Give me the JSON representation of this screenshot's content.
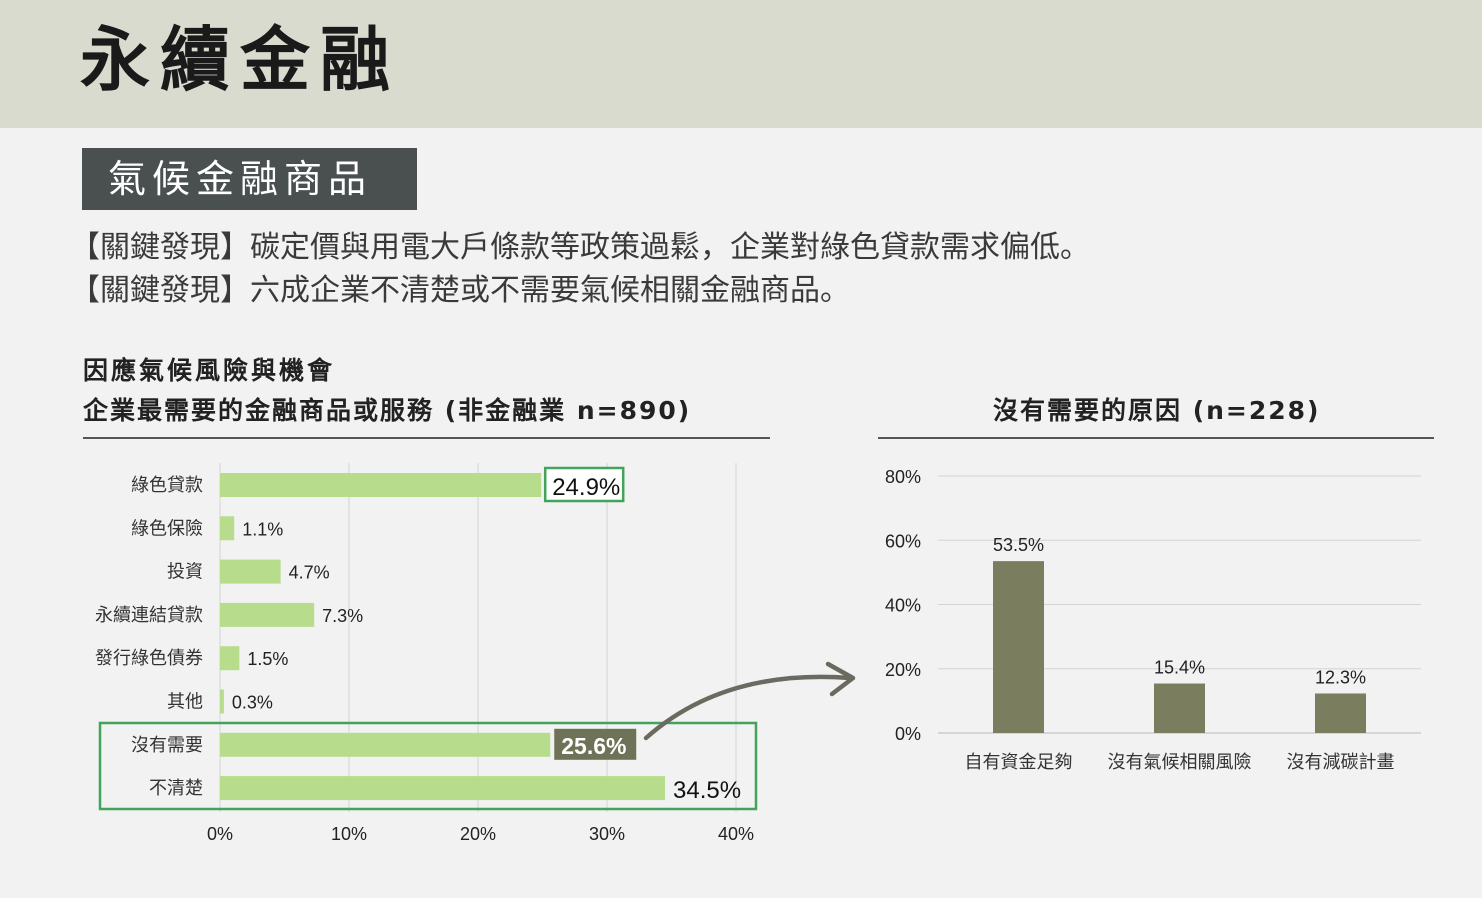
{
  "header": {
    "title": "永續金融"
  },
  "section": {
    "tag": "氣候金融商品"
  },
  "findings": [
    "【關鍵發現】碳定價與用電大戶條款等政策過鬆，企業對綠色貸款需求偏低。",
    "【關鍵發現】六成企業不清楚或不需要氣候相關金融商品。"
  ],
  "colors": {
    "bar_light": "#b7dc8b",
    "bar_dark": "#7a7e5e",
    "highlight_box": "#44a35a",
    "label_bg": "#6e7357",
    "arrow": "#6b6a60",
    "header_band": "#d9dbcf"
  },
  "chart_data": [
    {
      "type": "bar",
      "orientation": "horizontal",
      "title": "因應氣候風險與機會",
      "subtitle": "企業最需要的金融商品或服務 (非金融業 n=890)",
      "categories": [
        "綠色貸款",
        "綠色保險",
        "投資",
        "永續連結貸款",
        "發行綠色債券",
        "其他",
        "沒有需要",
        "不清楚"
      ],
      "values": [
        24.9,
        1.1,
        4.7,
        7.3,
        1.5,
        0.3,
        25.6,
        34.5
      ],
      "labels": [
        "24.9%",
        "1.1%",
        "4.7%",
        "7.3%",
        "1.5%",
        "0.3%",
        "25.6%",
        "34.5%"
      ],
      "xlim": [
        0,
        40
      ],
      "xticks": [
        "0%",
        "10%",
        "20%",
        "30%",
        "40%"
      ],
      "grid": true,
      "highlight": [
        "綠色貸款",
        "沒有需要",
        "不清楚"
      ]
    },
    {
      "type": "bar",
      "orientation": "vertical",
      "title": "沒有需要的原因 (n=228)",
      "categories": [
        "自有資金足夠",
        "沒有氣候相關風險",
        "沒有減碳計畫"
      ],
      "values": [
        53.5,
        15.4,
        12.3
      ],
      "labels": [
        "53.5%",
        "15.4%",
        "12.3%"
      ],
      "ylim": [
        0,
        80
      ],
      "yticks": [
        "0%",
        "20%",
        "40%",
        "60%",
        "80%"
      ],
      "grid": true
    }
  ]
}
